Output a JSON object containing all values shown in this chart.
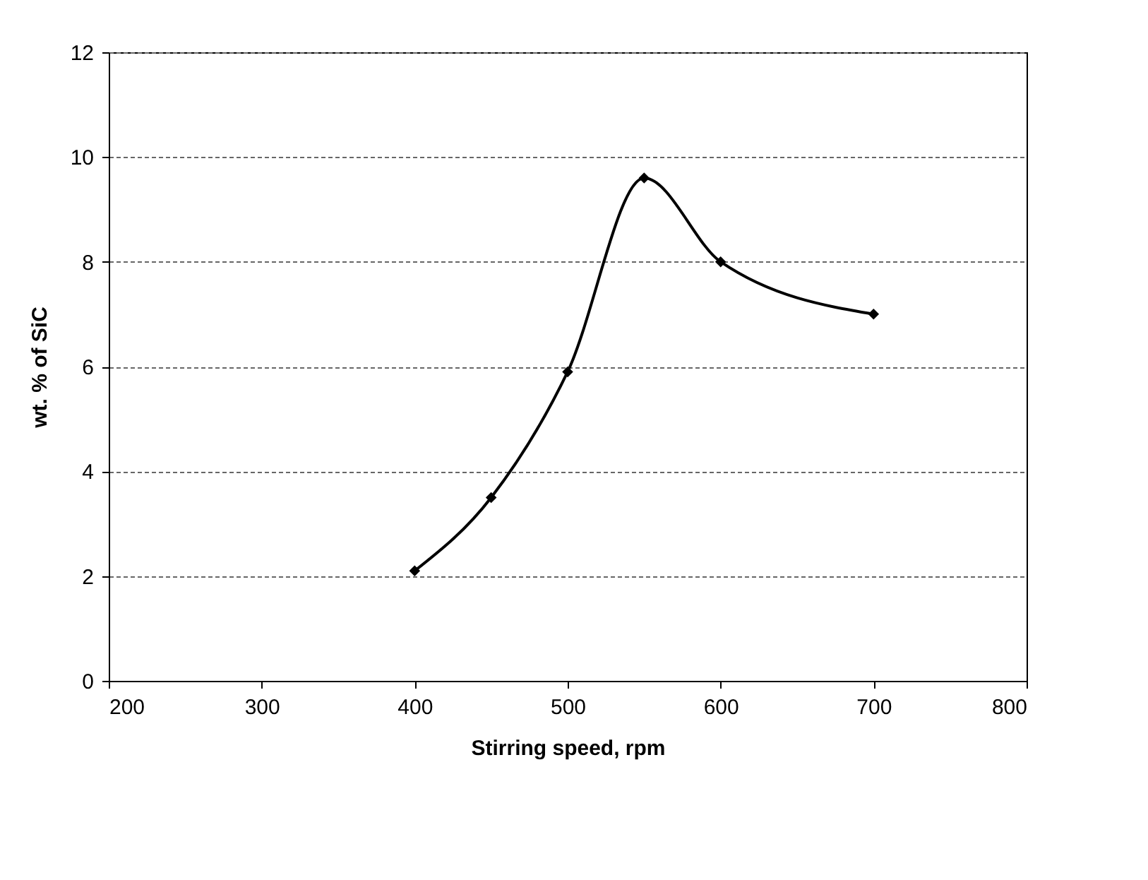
{
  "chart_data": {
    "type": "line",
    "xlabel": "Stirring speed, rpm",
    "ylabel": "wt. % of SiC",
    "x": [
      400,
      450,
      500,
      550,
      600,
      700
    ],
    "series": [
      {
        "color": "#000000",
        "values": [
          2.1,
          3.5,
          5.9,
          9.6,
          8.0,
          7.0
        ]
      }
    ],
    "xlim": [
      200,
      800
    ],
    "xticks": [
      200,
      300,
      400,
      500,
      600,
      700,
      800
    ],
    "ylim": [
      0,
      12
    ],
    "yticks": [
      0,
      2,
      4,
      6,
      8,
      10,
      12
    ],
    "grid": "y",
    "marker": "diamond",
    "line_style": "solid"
  }
}
